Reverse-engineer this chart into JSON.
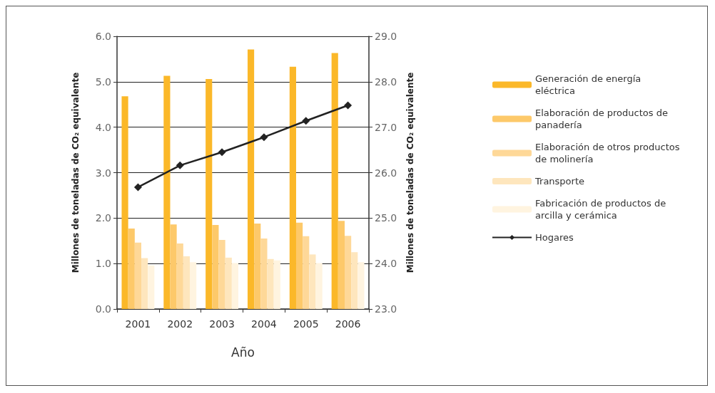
{
  "chart_data": {
    "type": "bar",
    "xlabel": "Año",
    "ylabel": "Millones de toneladas de CO₂ equivalente",
    "y2label": "Millones de toneladas de CO₂ equivalente",
    "categories": [
      "2001",
      "2002",
      "2003",
      "2004",
      "2005",
      "2006"
    ],
    "series": [
      {
        "name": "Generación de energía eléctrica",
        "color": "#fbb829",
        "values": [
          4.68,
          5.13,
          5.06,
          5.71,
          5.33,
          5.63
        ]
      },
      {
        "name": "Elaboración de productos de panadería",
        "color": "#fdc96a",
        "values": [
          1.77,
          1.86,
          1.85,
          1.88,
          1.9,
          1.94
        ]
      },
      {
        "name": "Elaboración de otros productos de molinería",
        "color": "#fed898",
        "values": [
          1.46,
          1.44,
          1.52,
          1.55,
          1.6,
          1.61
        ]
      },
      {
        "name": "Transporte",
        "color": "#fee6bd",
        "values": [
          1.12,
          1.16,
          1.13,
          1.1,
          1.2,
          1.25
        ]
      },
      {
        "name": "Fabricación de productos de arcilla y cerámica",
        "color": "#fff4e0",
        "values": [
          0.96,
          1.03,
          1.01,
          1.07,
          1.01,
          1.03
        ]
      },
      {
        "name": "Hogares",
        "type": "line",
        "axis": "y2",
        "color": "#222222",
        "marker": "diamond",
        "line_style": "solid",
        "values": [
          25.68,
          26.16,
          26.45,
          26.78,
          27.14,
          27.48
        ]
      }
    ],
    "ylim": [
      0,
      6
    ],
    "yticks": [
      {
        "value": 0,
        "label": "0.0"
      },
      {
        "value": 1,
        "label": "1.0"
      },
      {
        "value": 2,
        "label": "2.0"
      },
      {
        "value": 3,
        "label": "3.0"
      },
      {
        "value": 4,
        "label": "4.0"
      },
      {
        "value": 5,
        "label": "5.0"
      },
      {
        "value": 6,
        "label": "6.0"
      }
    ],
    "y2lim": [
      23,
      29
    ],
    "y2ticks": [
      {
        "value": 23,
        "label": "23.0"
      },
      {
        "value": 24,
        "label": "24.0"
      },
      {
        "value": 25,
        "label": "25.0"
      },
      {
        "value": 26,
        "label": "26.0"
      },
      {
        "value": 27,
        "label": "27.0"
      },
      {
        "value": 28,
        "label": "28.0"
      },
      {
        "value": 29,
        "label": "29.0"
      }
    ],
    "grid": "y",
    "legend": "right"
  }
}
